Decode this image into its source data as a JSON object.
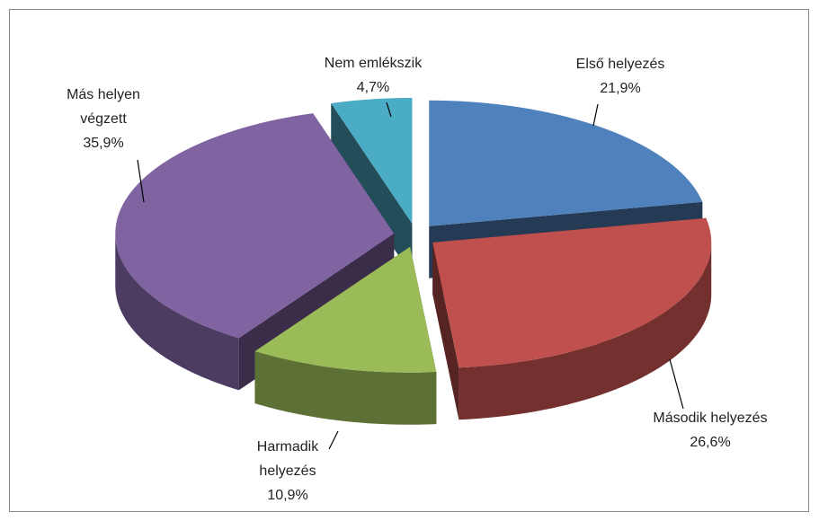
{
  "chart_data": {
    "type": "pie",
    "categories": [
      "Első helyezés",
      "Második helyezés",
      "Harmadik helyezés",
      "Más helyen végzett",
      "Nem emlékszik"
    ],
    "values": [
      21.9,
      26.6,
      10.9,
      35.9,
      4.7
    ],
    "value_labels": [
      "21,9%",
      "26,6%",
      "10,9%",
      "35,9%",
      "4,7%"
    ],
    "colors": [
      "#4f81bd",
      "#c0504d",
      "#9bbb59",
      "#8064a2",
      "#4bacc6"
    ]
  }
}
